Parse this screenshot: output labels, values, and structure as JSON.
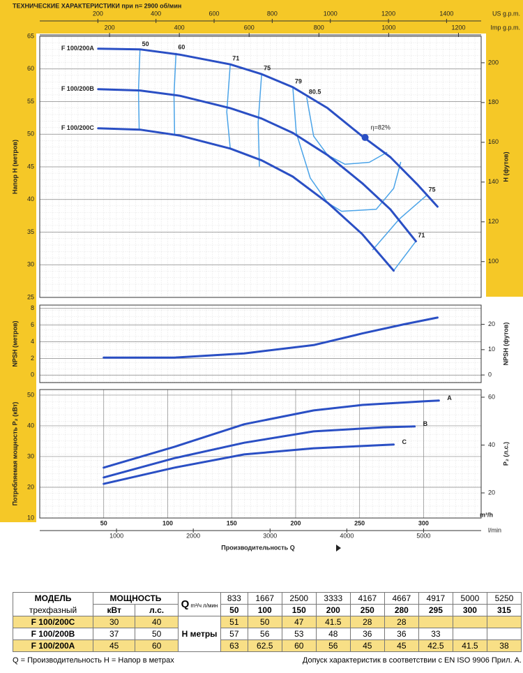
{
  "chart_data": [
    {
      "type": "line",
      "title": "ТЕХНИЧЕСКИЕ ХАРАКТЕРИСТИКИ при n= 2900 об/мин",
      "ylabel": "Напор H (метров)",
      "y2label": "H (футов)",
      "xlim": [
        0,
        345
      ],
      "ylim": [
        25,
        65
      ],
      "yticks": [
        25,
        30,
        35,
        40,
        45,
        50,
        55,
        60,
        65
      ],
      "y2lim": [
        82,
        213.3
      ],
      "y2ticks": [
        100,
        120,
        140,
        160,
        180,
        200
      ],
      "x2label": "US g.p.m.",
      "x2lim": [
        0,
        1519
      ],
      "x2ticks": [
        200,
        400,
        600,
        800,
        1000,
        1200,
        1400
      ],
      "x3label": "Imp g.p.m.",
      "x3lim": [
        0,
        1265
      ],
      "x3ticks": [
        200,
        400,
        600,
        800,
        1000,
        1200
      ],
      "grid": true,
      "series": [
        {
          "name": "F 100/200A",
          "color": "#2a4fc4",
          "x": [
            45.7,
            78.3,
            109.2,
            148.9,
            173.4,
            197.8,
            225,
            252,
            274,
            295.7,
            310.9
          ],
          "values": [
            63.1,
            63,
            62.2,
            60.7,
            59.2,
            57.2,
            54,
            49.7,
            46.5,
            42.2,
            38.9
          ]
        },
        {
          "name": "F 100/200B",
          "color": "#2a4fc4",
          "x": [
            45.7,
            78.3,
            109.2,
            148.9,
            173.4,
            197.8,
            225,
            252,
            274,
            294
          ],
          "values": [
            56.9,
            56.7,
            55.9,
            54,
            52.4,
            50.2,
            46.8,
            42.5,
            38.5,
            33.6
          ]
        },
        {
          "name": "F 100/200C",
          "color": "#2a4fc4",
          "x": [
            45.7,
            78.3,
            109.2,
            148.9,
            173.4,
            197.8,
            225,
            252,
            276.6
          ],
          "values": [
            50.9,
            50.7,
            49.8,
            47.8,
            46,
            43.5,
            39.5,
            34.7,
            29.1
          ]
        }
      ],
      "efficiency_lines": [
        {
          "name": "50",
          "color": "#4aa3e8",
          "x": [
            78.3,
            77.2,
            77.7
          ],
          "values": [
            62.9,
            56.7,
            50.7
          ]
        },
        {
          "name": "60",
          "color": "#4aa3e8",
          "x": [
            106.5,
            104.9,
            105.4
          ],
          "values": [
            62.4,
            56,
            50
          ]
        },
        {
          "name": "71",
          "color": "#4aa3e8",
          "x": [
            148.9,
            146.2,
            148.9
          ],
          "values": [
            60.7,
            53.4,
            47.8
          ]
        },
        {
          "name": "75",
          "color": "#4aa3e8",
          "x": [
            173.4,
            170.7,
            171.7
          ],
          "values": [
            59.2,
            51.8,
            45.1
          ]
        },
        {
          "name": "79",
          "color": "#4aa3e8",
          "x": [
            197.8,
            200.5,
            211.4,
            225,
            235.9,
            263,
            276.6,
            282.1
          ],
          "values": [
            57.2,
            50.2,
            43.3,
            39.5,
            38.2,
            38.5,
            41.7,
            45.7
          ]
        },
        {
          "name": "80.5",
          "color": "#4aa3e8",
          "x": [
            208.7,
            214.1,
            225,
            238.6,
            257.6,
            271.2
          ],
          "values": [
            55.6,
            49.7,
            46.8,
            45.4,
            45.7,
            47.2
          ]
        },
        {
          "name": "75",
          "color": "#4aa3e8",
          "x": [
            302.2,
            281,
            260.3
          ],
          "values": [
            40.6,
            37,
            32.3
          ]
        },
        {
          "name": "71",
          "color": "#4aa3e8",
          "x": [
            294,
            276.6
          ],
          "values": [
            33.6,
            29.1
          ]
        }
      ],
      "annotations": [
        {
          "text": "η=82%",
          "x": 254.3,
          "y": 49.5,
          "color": "#2a4fc4"
        }
      ]
    },
    {
      "type": "line",
      "ylabel": "NPSH (метров)",
      "y2label": "NPSH (футов)",
      "xlim": [
        0,
        345
      ],
      "ylim": [
        -0.9,
        8.4
      ],
      "yticks": [
        0,
        2,
        4,
        6,
        8
      ],
      "y2lim": [
        -3,
        27.6
      ],
      "y2ticks": [
        0,
        10,
        20
      ],
      "grid": true,
      "series": [
        {
          "color": "#2a4fc4",
          "x": [
            50,
            105.4,
            159.8,
            214.1,
            252.2,
            284.8,
            310.9
          ],
          "values": [
            2.1,
            2.1,
            2.6,
            3.6,
            5,
            6.1,
            6.9
          ]
        }
      ]
    },
    {
      "type": "line",
      "ylabel": "Потребляемая мощность P₂ (кВт)",
      "y2label": "P₂ (л.с.)",
      "xlabel": "Производительность Q",
      "xunit": "m³/h",
      "xlim": [
        0,
        345
      ],
      "xticks": [
        50,
        100,
        150,
        200,
        250,
        300
      ],
      "x2unit": "l/min",
      "x2lim": [
        0,
        5750
      ],
      "x2ticks": [
        1000,
        2000,
        3000,
        4000,
        5000
      ],
      "ylim": [
        10,
        51.8
      ],
      "yticks": [
        10,
        20,
        30,
        40,
        50
      ],
      "y2lim": [
        9.5,
        63.2
      ],
      "y2ticks": [
        20,
        40,
        60
      ],
      "grid": true,
      "series": [
        {
          "name": "A",
          "color": "#2a4fc4",
          "x": [
            50,
            105.4,
            159.8,
            214.1,
            252.2,
            301.1,
            311.9
          ],
          "values": [
            26.4,
            33.2,
            40.5,
            45,
            46.8,
            48,
            48.2
          ]
        },
        {
          "name": "B",
          "color": "#2a4fc4",
          "x": [
            50,
            105.4,
            159.8,
            214.1,
            268.5,
            293
          ],
          "values": [
            23.2,
            29.5,
            34.5,
            38.2,
            39.5,
            39.8
          ]
        },
        {
          "name": "C",
          "color": "#2a4fc4",
          "x": [
            50,
            105.4,
            159.8,
            214.1,
            276.6
          ],
          "values": [
            21.1,
            26.4,
            30.7,
            32.7,
            33.9
          ]
        }
      ]
    }
  ],
  "table": {
    "model_header": "МОДЕЛЬ",
    "model_sub": "трехфазный",
    "power_header": "МОЩНОСТЬ",
    "kw": "кВт",
    "hp": "л.с.",
    "q_label": "Q",
    "q_unit_top": "m³/ч",
    "q_unit_bottom": "л/мин",
    "h_label": "H метры",
    "q_lmin": [
      833,
      1667,
      2500,
      3333,
      4167,
      4667,
      4917,
      5000,
      5250
    ],
    "q_m3h": [
      50,
      100,
      150,
      200,
      250,
      280,
      295,
      300,
      315
    ],
    "rows": [
      {
        "model": "F 100/200C",
        "kw": 30,
        "hp": 40,
        "h": [
          51,
          50,
          47,
          41.5,
          28,
          28,
          null,
          null,
          null
        ]
      },
      {
        "model": "F 100/200B",
        "kw": 37,
        "hp": 50,
        "h": [
          57,
          56,
          53,
          48,
          36,
          36,
          33,
          null,
          null
        ]
      },
      {
        "model": "F 100/200A",
        "kw": 45,
        "hp": 60,
        "h": [
          63,
          62.5,
          60,
          56,
          45,
          45,
          42.5,
          41.5,
          38
        ]
      }
    ]
  },
  "footer": {
    "left": "Q = Производительность  H = Напор в метрах",
    "right": "Допуск характеристик в соответствии с EN ISO 9906 Прил. A."
  }
}
